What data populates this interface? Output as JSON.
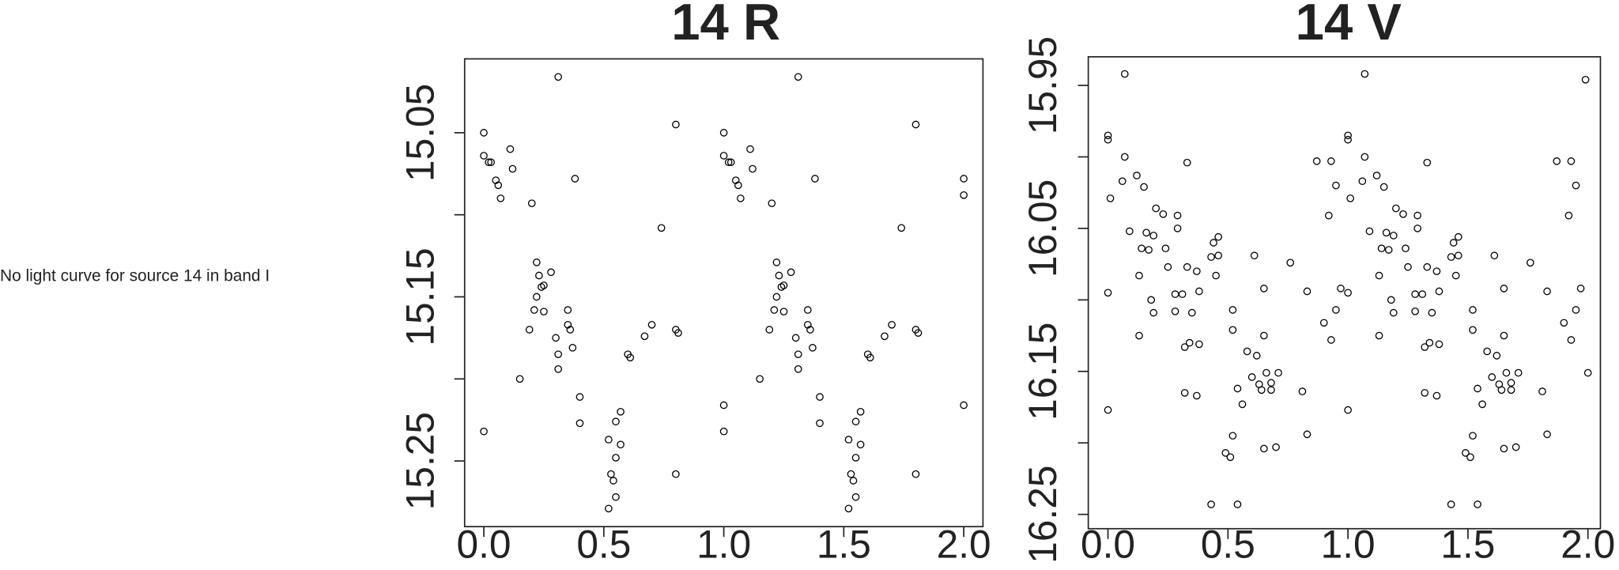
{
  "message": "No light curve for source 14 in band I",
  "chart_data": [
    {
      "type": "scatter",
      "title": "14 R",
      "xlim": [
        -0.08,
        2.08
      ],
      "ylim": [
        15.005,
        15.29
      ],
      "y_reversed": true,
      "marker_color": "#000000",
      "xticks": [
        {
          "value": 0,
          "label": "0.0"
        },
        {
          "value": 0.5,
          "label": "0.5"
        },
        {
          "value": 1,
          "label": "1.0"
        },
        {
          "value": 1.5,
          "label": "1.5"
        },
        {
          "value": 2,
          "label": "2.0"
        }
      ],
      "yticks": [
        15.05,
        15.15,
        15.25
      ],
      "yticks_minor": [
        15.1,
        15.2
      ],
      "x": [
        0,
        0,
        0.02,
        0.03,
        0.05,
        0.06,
        0.07,
        0.11,
        0.12,
        0.2,
        0,
        0.15,
        0.19,
        0.21,
        0.22,
        0.23,
        0.22,
        0.24,
        0.25,
        0.25,
        0.28,
        0.31,
        0.3,
        0.31,
        0.31,
        0.35,
        0.35,
        0.36,
        0.37,
        0.38,
        0.4,
        0.4,
        0.52,
        0.52,
        0.53,
        0.54,
        0.55,
        0.55,
        0.55,
        0.57,
        0.57,
        0.6,
        0.61,
        0.67,
        0.7,
        0.74,
        0.8,
        0.8,
        0.81,
        0.8,
        1,
        1,
        1.02,
        1.03,
        1.05,
        1.06,
        1.07,
        1.11,
        1.12,
        1.2,
        1,
        1.15,
        1.19,
        1.21,
        1.22,
        1.23,
        1.22,
        1.24,
        1.25,
        1.25,
        1.28,
        1.31,
        1.3,
        1.31,
        1.31,
        1.35,
        1.35,
        1.36,
        1.37,
        1.38,
        1.4,
        1.4,
        1.52,
        1.52,
        1.53,
        1.54,
        1.55,
        1.55,
        1.55,
        1.57,
        1.57,
        1.6,
        1.61,
        1.67,
        1.7,
        1.74,
        1.8,
        1.8,
        1.81,
        1.8,
        1,
        2,
        2,
        2
      ],
      "values": [
        15.05,
        15.064,
        15.068,
        15.068,
        15.079,
        15.082,
        15.09,
        15.06,
        15.072,
        15.093,
        15.232,
        15.2,
        15.17,
        15.158,
        15.129,
        15.137,
        15.15,
        15.144,
        15.143,
        15.159,
        15.135,
        15.016,
        15.175,
        15.185,
        15.194,
        15.158,
        15.167,
        15.17,
        15.181,
        15.078,
        15.211,
        15.227,
        15.237,
        15.279,
        15.258,
        15.262,
        15.272,
        15.248,
        15.226,
        15.24,
        15.22,
        15.185,
        15.187,
        15.174,
        15.167,
        15.108,
        15.045,
        15.17,
        15.172,
        15.258,
        15.05,
        15.064,
        15.068,
        15.068,
        15.079,
        15.082,
        15.09,
        15.06,
        15.072,
        15.093,
        15.232,
        15.2,
        15.17,
        15.158,
        15.129,
        15.137,
        15.15,
        15.144,
        15.143,
        15.159,
        15.135,
        15.016,
        15.175,
        15.185,
        15.194,
        15.158,
        15.167,
        15.17,
        15.181,
        15.078,
        15.211,
        15.227,
        15.237,
        15.279,
        15.258,
        15.262,
        15.272,
        15.248,
        15.226,
        15.24,
        15.22,
        15.185,
        15.187,
        15.174,
        15.167,
        15.108,
        15.045,
        15.17,
        15.172,
        15.258,
        15.216,
        15.078,
        15.088,
        15.216
      ]
    },
    {
      "type": "scatter",
      "title": "14 V",
      "xlim": [
        -0.082,
        2.052
      ],
      "ylim": [
        15.93,
        16.26
      ],
      "y_reversed": true,
      "marker_color": "#000000",
      "xticks": [
        {
          "value": 0,
          "label": "0.0"
        },
        {
          "value": 0.5,
          "label": "0.5"
        },
        {
          "value": 1,
          "label": "1.0"
        },
        {
          "value": 1.5,
          "label": "1.5"
        },
        {
          "value": 2,
          "label": "2.0"
        }
      ],
      "yticks": [
        15.95,
        16.05,
        16.15,
        16.25
      ],
      "yticks_minor": [
        16.0,
        16.1,
        16.2
      ],
      "x": [
        0,
        0,
        0.01,
        0,
        0,
        0.07,
        0.07,
        0.06,
        0.12,
        0.15,
        0.09,
        0.14,
        0.13,
        0.13,
        0.16,
        0.17,
        0.2,
        0.19,
        0.18,
        0.19,
        0.23,
        0.25,
        0.24,
        0.29,
        0.29,
        0.28,
        0.28,
        0.31,
        0.33,
        0.33,
        0.32,
        0.34,
        0.37,
        0.38,
        0.32,
        0.37,
        0.35,
        0.38,
        0.43,
        0.44,
        0.46,
        0.46,
        0.45,
        0.43,
        0.49,
        0.51,
        0.52,
        0.52,
        0.52,
        0.54,
        0.54,
        0.56,
        0.58,
        0.6,
        0.61,
        0.62,
        0.63,
        0.64,
        0.65,
        0.65,
        0.65,
        0.66,
        0.68,
        0.68,
        0.7,
        0.71,
        0.76,
        0.81,
        0.83,
        0.83,
        0.87,
        0.9,
        0.92,
        0.93,
        0.93,
        0.95,
        0.95,
        0.97,
        1,
        1,
        1.01,
        1,
        1,
        1.07,
        1.07,
        1.06,
        1.12,
        1.15,
        1.09,
        1.14,
        1.13,
        1.13,
        1.16,
        1.17,
        1.2,
        1.19,
        1.18,
        1.19,
        1.23,
        1.25,
        1.24,
        1.29,
        1.29,
        1.28,
        1.28,
        1.31,
        1.33,
        1.33,
        1.32,
        1.34,
        1.37,
        1.38,
        1.32,
        1.37,
        1.35,
        1.38,
        1.43,
        1.44,
        1.46,
        1.46,
        1.45,
        1.43,
        1.49,
        1.51,
        1.52,
        1.52,
        1.52,
        1.54,
        1.54,
        1.56,
        1.58,
        1.6,
        1.61,
        1.62,
        1.63,
        1.64,
        1.65,
        1.65,
        1.65,
        1.66,
        1.68,
        1.68,
        1.7,
        1.71,
        1.76,
        1.81,
        1.83,
        1.83,
        1.87,
        1.9,
        1.92,
        1.93,
        1.93,
        1.95,
        1.95,
        1.97,
        1.99,
        2
      ],
      "values": [
        15.985,
        15.988,
        16.029,
        16.095,
        16.177,
        15.942,
        16.0,
        16.017,
        16.013,
        16.021,
        16.052,
        16.064,
        16.083,
        16.125,
        16.053,
        16.065,
        16.036,
        16.055,
        16.1,
        16.109,
        16.04,
        16.077,
        16.064,
        16.041,
        16.05,
        16.096,
        16.108,
        16.096,
        16.004,
        16.077,
        16.133,
        16.13,
        16.08,
        16.131,
        16.165,
        16.167,
        16.109,
        16.094,
        16.07,
        16.06,
        16.056,
        16.069,
        16.083,
        16.243,
        16.207,
        16.21,
        16.195,
        16.107,
        16.121,
        16.243,
        16.162,
        16.173,
        16.136,
        16.154,
        16.069,
        16.139,
        16.159,
        16.163,
        16.092,
        16.204,
        16.125,
        16.151,
        16.158,
        16.163,
        16.203,
        16.151,
        16.074,
        16.164,
        16.094,
        16.194,
        16.003,
        16.116,
        16.041,
        16.128,
        16.003,
        16.02,
        16.107,
        16.092,
        15.985,
        15.988,
        16.029,
        16.095,
        16.177,
        15.942,
        16.0,
        16.017,
        16.013,
        16.021,
        16.052,
        16.064,
        16.083,
        16.125,
        16.053,
        16.065,
        16.036,
        16.055,
        16.1,
        16.109,
        16.04,
        16.077,
        16.064,
        16.041,
        16.05,
        16.096,
        16.108,
        16.096,
        16.004,
        16.077,
        16.133,
        16.13,
        16.08,
        16.131,
        16.165,
        16.167,
        16.109,
        16.094,
        16.07,
        16.06,
        16.056,
        16.069,
        16.083,
        16.243,
        16.207,
        16.21,
        16.195,
        16.107,
        16.121,
        16.243,
        16.162,
        16.173,
        16.136,
        16.154,
        16.069,
        16.139,
        16.159,
        16.163,
        16.092,
        16.204,
        16.125,
        16.151,
        16.158,
        16.163,
        16.203,
        16.151,
        16.074,
        16.164,
        16.094,
        16.194,
        16.003,
        16.116,
        16.041,
        16.128,
        16.003,
        16.02,
        16.107,
        16.092,
        15.946,
        16.151
      ]
    }
  ]
}
